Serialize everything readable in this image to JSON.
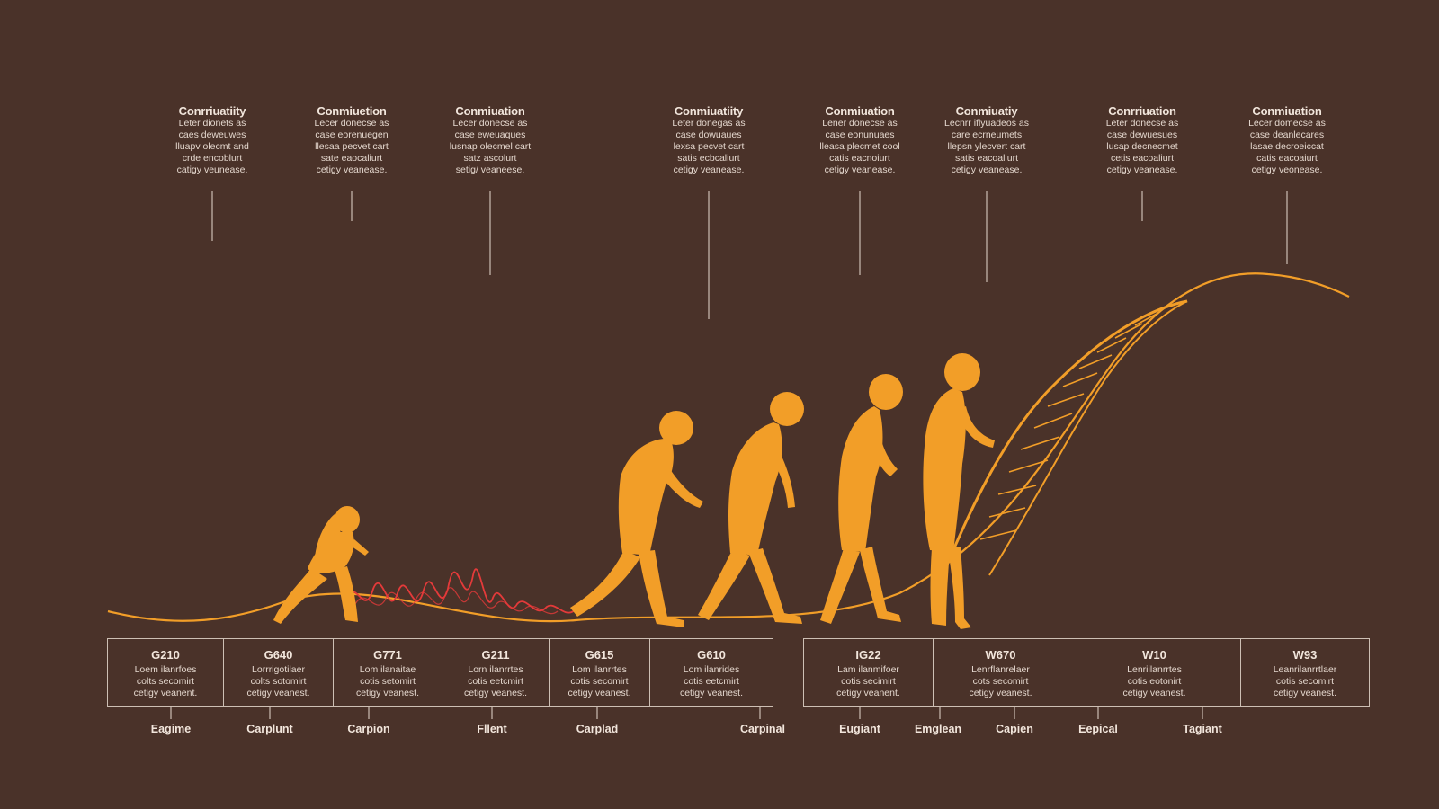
{
  "colors": {
    "background": "#4a3229",
    "figure": "#f29e28",
    "wave": "#e43a3a",
    "text": "#f2e6dc"
  },
  "callouts": [
    {
      "title": "Conrriuatiity",
      "body": "Leter dionets as\ncaes deweuwes\nlluapv olecmt and\ncrde encoblurt\ncatigy veunease."
    },
    {
      "title": "Conmiuetion",
      "body": "Lecer donecse as\ncase eorenuegen\nllesaa pecvet cart\nsate eaocaliurt\ncetigy veanease."
    },
    {
      "title": "Conmiuation",
      "body": "Lecer donecse as\ncase eweuaques\nlusnap olecmel cart\nsatz ascolurt\nsetig/ veaneese."
    },
    {
      "title": "Conmiuatiity",
      "body": "Leter donegas as\ncase dowuaues\nlexsa pecvet cart\nsatis ecbcaliurt\ncetigy veanease."
    },
    {
      "title": "Conmiuation",
      "body": "Lener donecse as\ncase eonunuaes\nlleasa plecmet cool\ncatis eacnoiurt\ncetigy veanease."
    },
    {
      "title": "Conmiuatiy",
      "body": "Lecnrr iflyuadeos as\ncare ecrneumets\nllepsn ylecvert cart\nsatis eacoaliurt\ncetigy veanease."
    },
    {
      "title": "Conrriuation",
      "body": "Leter donecse as\ncase dewuesues\nlusap decnecmet\ncetis eacoaliurt\ncetigy veanease."
    },
    {
      "title": "Conmiuation",
      "body": "Lecer domecse as\ncase deanlecares\nlasae decroeiccat\ncatis eacoaiurt\ncetigy veonease."
    }
  ],
  "cells": [
    {
      "code": "G210",
      "body": "Loem ilanrfoes\ncolts secomirt\ncetigy veanent."
    },
    {
      "code": "G640",
      "body": "Lorrrigotilaer\ncolts sotomirt\ncetigy veanest."
    },
    {
      "code": "G771",
      "body": "Lom ilanaitae\ncotis setomirt\ncetigy veanest."
    },
    {
      "code": "G211",
      "body": "Lorn ilanrrtes\ncotis eetcmirt\ncetigy veanest."
    },
    {
      "code": "G615",
      "body": "Lom ilanrrtes\ncotis secomirt\ncetigy veanest."
    },
    {
      "code": "G610",
      "body": "Lom ilanrides\ncotis eetcmirt\ncetigy veanest."
    },
    {
      "code": "IG22",
      "body": "Lam ilanmifoer\ncotis secimirt\ncetigy veanent."
    },
    {
      "code": "W670",
      "body": "Lenrflanrelaer\ncots secomirt\ncetigy veanest."
    },
    {
      "code": "W10",
      "body": "Lenriilanrrtes\ncotis eotonirt\ncetigy veanest."
    },
    {
      "code": "W93",
      "body": "Leanrilanrrtlaer\ncotis secomirt\ncetigy veanest."
    }
  ],
  "bottom_labels": [
    "Eagime",
    "Carplunt",
    "Carpion",
    "Fllent",
    "Carplad",
    "Carpinal",
    "Eugiant",
    "Emglean",
    "Capien",
    "Eepical",
    "Tagiant"
  ]
}
